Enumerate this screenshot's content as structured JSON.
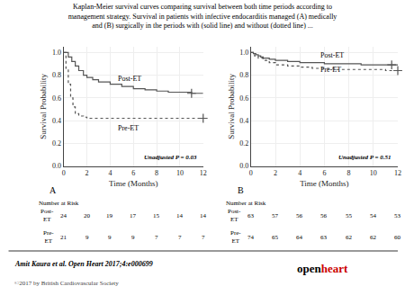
{
  "title": "Kaplan-Meier survival curves comparing survival between both time periods according to\nmanagement strategy. Survival in patients with infective endocarditis managed (A) medically\nand (B) surgically in the periods with (solid line) and without (dotted line) ...",
  "annotations": [
    {
      "text": "Amit Kaura et al. Open Heart 2017;4:e000699"
    },
    {
      "text": "©2017 by British Cardiovascular Society"
    },
    {
      "text": "open"
    },
    {
      "text": "heart",
      "color": "#cc0000"
    }
  ],
  "chart_data": [
    {
      "type": "step",
      "panel_label": "A",
      "xlabel": "Time (Months)",
      "ylabel": "Survival Probability",
      "xlim": [
        0,
        12
      ],
      "ylim": [
        0.0,
        1.05
      ],
      "xticks": [
        0,
        2,
        4,
        6,
        8,
        10,
        12
      ],
      "yticks": [
        {
          "value": 0.0,
          "label": "0.0"
        },
        0.2,
        0.4,
        0.6,
        0.8,
        {
          "value": 1.0,
          "label": "1.0"
        }
      ],
      "series": [
        {
          "name": "Post-ET",
          "color": "#555555",
          "line_style": "solid",
          "marker": "plus",
          "x": [
            0,
            0.4,
            0.7,
            1.0,
            1.3,
            1.7,
            2.0,
            2.5,
            3.0,
            4.0,
            5.0,
            6.0,
            7.0,
            8.0,
            9.0,
            10.0,
            11.0,
            12.0
          ],
          "values": [
            1.0,
            0.96,
            0.92,
            0.88,
            0.84,
            0.8,
            0.78,
            0.76,
            0.74,
            0.72,
            0.7,
            0.68,
            0.67,
            0.66,
            0.65,
            0.65,
            0.64,
            0.64
          ],
          "censored_x": [
            11.0
          ],
          "censored_values": [
            0.64
          ]
        },
        {
          "name": "Pre-ET",
          "color": "#555555",
          "line_style": "dotted",
          "marker": "plus",
          "x": [
            0,
            0.2,
            0.4,
            0.6,
            0.8,
            1.0,
            1.3,
            1.7,
            2.0,
            3.0,
            4.0,
            5.0,
            6.0,
            7.0,
            8.0,
            10.0,
            12.0
          ],
          "values": [
            1.0,
            0.86,
            0.72,
            0.6,
            0.52,
            0.46,
            0.44,
            0.43,
            0.42,
            0.42,
            0.42,
            0.42,
            0.42,
            0.42,
            0.42,
            0.42,
            0.42
          ],
          "censored_x": [
            12.0
          ],
          "censored_values": [
            0.42
          ]
        }
      ],
      "annotations": [
        {
          "text": "Post-ET",
          "x": 4.5,
          "y": 0.72
        },
        {
          "text": "Pre-ET",
          "x": 4.5,
          "y": 0.28
        },
        {
          "text": "Unadjusted P = 0.03"
        }
      ],
      "risk_table": {
        "title": "Number at Risk",
        "rows": [
          {
            "name": "Post-\nET",
            "values": [
              24,
              20,
              19,
              17,
              15,
              14,
              14
            ]
          },
          {
            "name": "Pre-\nET",
            "values": [
              21,
              9,
              9,
              9,
              7,
              7,
              7
            ]
          }
        ]
      }
    },
    {
      "type": "step",
      "panel_label": "B",
      "xlabel": "Time (Months)",
      "ylabel": "Survival Probability",
      "xlim": [
        0,
        12
      ],
      "ylim": [
        0.0,
        1.05
      ],
      "xticks": [
        0,
        2,
        4,
        6,
        8,
        10,
        12
      ],
      "yticks": [
        {
          "value": 0.0,
          "label": "0.0"
        },
        0.2,
        0.4,
        0.6,
        0.8,
        {
          "value": 1.0,
          "label": "1.0"
        }
      ],
      "series": [
        {
          "name": "Post-ET",
          "color": "#555555",
          "line_style": "solid",
          "marker": "plus",
          "x": [
            0,
            0.2,
            0.4,
            0.6,
            0.8,
            1.0,
            1.5,
            2.0,
            3.0,
            4.0,
            5.0,
            6.0,
            7.0,
            8.0,
            9.0,
            10.0,
            11.0,
            12.0
          ],
          "values": [
            1.0,
            0.99,
            0.98,
            0.97,
            0.96,
            0.95,
            0.94,
            0.93,
            0.92,
            0.91,
            0.91,
            0.9,
            0.9,
            0.9,
            0.89,
            0.89,
            0.89,
            0.89
          ],
          "censored_x": [
            11.5
          ],
          "censored_values": [
            0.89
          ]
        },
        {
          "name": "Pre-ET",
          "color": "#555555",
          "line_style": "dotted",
          "marker": "plus",
          "x": [
            0,
            0.3,
            0.6,
            1.0,
            1.5,
            2.0,
            3.0,
            4.0,
            5.0,
            6.0,
            7.0,
            8.0,
            9.0,
            10.0,
            11.0,
            12.0
          ],
          "values": [
            1.0,
            0.97,
            0.95,
            0.93,
            0.91,
            0.89,
            0.88,
            0.87,
            0.86,
            0.86,
            0.85,
            0.85,
            0.85,
            0.85,
            0.84,
            0.84
          ],
          "censored_x": [
            12.0
          ],
          "censored_values": [
            0.84
          ]
        }
      ],
      "annotations": [
        {
          "text": "Post-ET",
          "x": 5.5,
          "y": 0.92
        },
        {
          "text": "Pre-ET",
          "x": 5.5,
          "y": 0.8
        },
        {
          "text": "Unadjusted P = 0.51"
        }
      ],
      "risk_table": {
        "title": "Number at Risk",
        "rows": [
          {
            "name": "Post-\nET",
            "values": [
              63,
              57,
              56,
              56,
              55,
              54,
              53
            ]
          },
          {
            "name": "Pre-\nET",
            "values": [
              74,
              65,
              64,
              63,
              62,
              62,
              60
            ]
          }
        ]
      }
    }
  ]
}
